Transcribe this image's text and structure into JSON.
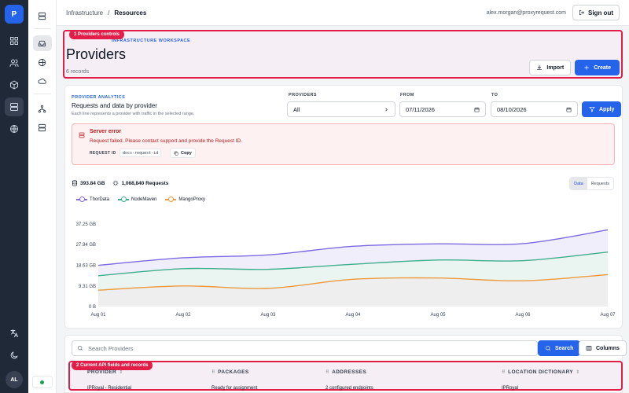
{
  "rail": {
    "logo": "P",
    "avatar": "AL"
  },
  "topbar": {
    "breadcrumbs": [
      "Infrastructure",
      "/",
      "Resources"
    ],
    "email": "alex.morgan@proxyrequest.com",
    "sign_out": "Sign out"
  },
  "header": {
    "annotation": "1 Providers controls",
    "eyebrow": "INFRASTRUCTURE WORKSPACE",
    "title": "Providers",
    "count": "6 records",
    "import_label": "Import",
    "create_label": "Create"
  },
  "analytics": {
    "eyebrow": "PROVIDER ANALYTICS",
    "title": "Requests and data by provider",
    "subtitle": "Each line represents a provider with traffic in the selected range.",
    "providers_label": "PROVIDERS",
    "providers_value": "All",
    "from_label": "FROM",
    "from_value": "07/11/2026",
    "to_label": "TO",
    "to_value": "08/10/2026",
    "apply_label": "Apply",
    "error": {
      "title": "Server error",
      "message": "Request failed. Please contact support and provide the Request ID.",
      "request_id_label": "REQUEST ID",
      "request_id": "docs-request-id",
      "copy_label": "Copy"
    },
    "stats": {
      "data": "393.84 GB",
      "requests": "1,068,840 Requests"
    },
    "toggle": {
      "data": "Data",
      "requests": "Requests",
      "active": "Data"
    }
  },
  "chart_data": {
    "type": "area",
    "x": [
      "Aug 01",
      "Aug 02",
      "Aug 03",
      "Aug 04",
      "Aug 05",
      "Aug 06",
      "Aug 07"
    ],
    "yticks": [
      "0 B",
      "9.31 GB",
      "18.63 GB",
      "27.94 GB",
      "37.25 GB"
    ],
    "ylim": [
      0,
      37.25
    ],
    "grid": false,
    "legend": "top-left",
    "series": [
      {
        "name": "ThorData",
        "color": "#7c6be0",
        "fill": "#f1eefb",
        "values": [
          18.6,
          22.0,
          23.3,
          27.2,
          28.3,
          28.4,
          34.6
        ]
      },
      {
        "name": "NodeMaven",
        "color": "#3fae8c",
        "fill": "#eaf4f0",
        "values": [
          13.9,
          17.1,
          16.8,
          19.1,
          21.0,
          20.7,
          24.6
        ]
      },
      {
        "name": "MangoProxy",
        "color": "#ec9a3c",
        "fill": "#eeeeee",
        "values": [
          7.4,
          9.3,
          8.2,
          12.3,
          12.9,
          11.6,
          14.4
        ]
      }
    ]
  },
  "table": {
    "search_placeholder": "Search Providers",
    "search_label": "Search",
    "columns_label": "Columns",
    "annotation": "2 Current API fields and records",
    "columns": [
      "PROVIDER",
      "PACKAGES",
      "ADDRESSES",
      "LOCATION DICTIONARY"
    ],
    "first_row": [
      "IPRoyal - Residential",
      "Ready for assignment",
      "2 configured endpoints",
      "IPRoyal"
    ]
  }
}
